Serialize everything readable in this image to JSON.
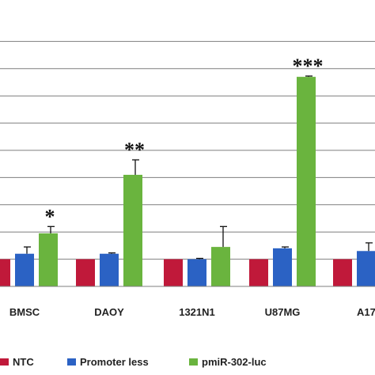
{
  "chart_data": {
    "type": "bar",
    "title": "",
    "xlabel": "",
    "ylabel": "",
    "ylim": [
      0,
      9
    ],
    "grid": true,
    "legend_position": "bottom",
    "categories": [
      "BMSC",
      "DAOY",
      "1321N1",
      "U87MG",
      "A17"
    ],
    "series": [
      {
        "name": "NTC",
        "color": "#c0193a",
        "values": [
          1.0,
          1.0,
          1.0,
          1.0,
          1.0
        ],
        "errors": [
          0,
          0,
          0,
          0,
          0
        ]
      },
      {
        "name": "Promoter less",
        "color": "#2b62c4",
        "values": [
          1.2,
          1.2,
          1.0,
          1.4,
          1.3
        ],
        "errors": [
          0.25,
          0.03,
          0.03,
          0.05,
          0.3
        ]
      },
      {
        "name": "pmiR-302-luc",
        "color": "#6ab43e",
        "values": [
          1.95,
          4.1,
          1.45,
          7.7,
          null
        ],
        "errors": [
          0.25,
          0.55,
          0.75,
          0.03,
          null
        ]
      }
    ],
    "annotations": [
      "*",
      "**",
      "",
      "***",
      ""
    ]
  }
}
